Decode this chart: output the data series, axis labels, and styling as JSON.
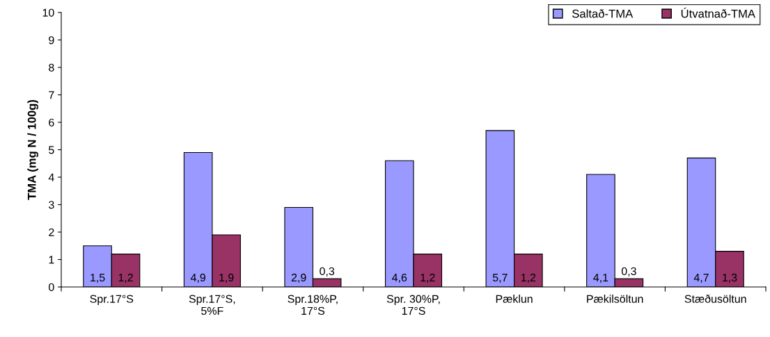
{
  "chart_data": {
    "type": "bar",
    "ylabel": "TMA (mg N / 100g)",
    "categories": [
      "Spr.17°S",
      "Spr.17°S,\n5%F",
      "Spr.18%P,\n17°S",
      "Spr. 30%P,\n17°S",
      "Pæklun",
      "Pækilsöltun",
      "Stæðusöltun"
    ],
    "series": [
      {
        "name": "Saltað-TMA",
        "color": "#9999ff",
        "values": [
          1.5,
          4.9,
          2.9,
          4.6,
          5.7,
          4.1,
          4.7
        ],
        "value_labels": [
          "1,5",
          "4,9",
          "2,9",
          "4,6",
          "5,7",
          "4,1",
          "4,7"
        ]
      },
      {
        "name": "Útvatnað-TMA",
        "color": "#993366",
        "values": [
          1.2,
          1.9,
          0.3,
          1.2,
          1.2,
          0.3,
          1.3
        ],
        "value_labels": [
          "1,2",
          "1,9",
          "0,3",
          "1,2",
          "1,2",
          "0,3",
          "1,3"
        ]
      }
    ],
    "ylim": [
      0,
      10
    ],
    "yticks": [
      0,
      1,
      2,
      3,
      4,
      5,
      6,
      7,
      8,
      9,
      10
    ],
    "grid": false,
    "legend": "top right"
  }
}
